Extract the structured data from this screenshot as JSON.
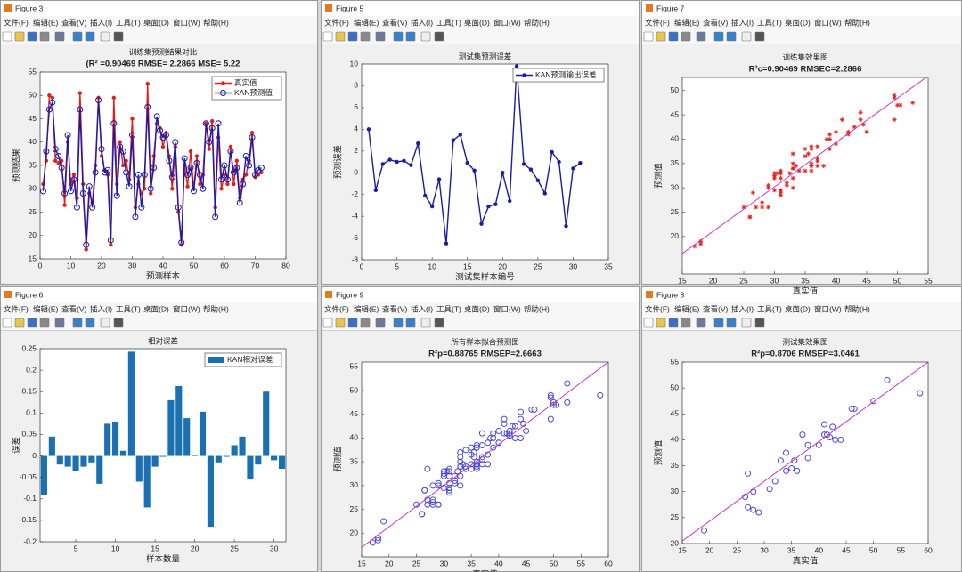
{
  "windows": [
    "Figure 3",
    "Figure 5",
    "Figure 7",
    "Figure 6",
    "Figure 9",
    "Figure 8"
  ],
  "menu": [
    "文件(F)",
    "编辑(E)",
    "查看(V)",
    "插入(I)",
    "工具(T)",
    "桌面(D)",
    "窗口(W)",
    "帮助(H)"
  ],
  "chart_data": [
    {
      "type": "line",
      "title": "训练集预测结果对比",
      "subtitle": "(R² =0.90469 RMSE= 2.2866 MSE= 5.22",
      "xlabel": "预测样本",
      "ylabel": "预测结果",
      "xlim": [
        0,
        80
      ],
      "ylim": [
        15,
        55
      ],
      "xticks": [
        0,
        10,
        20,
        30,
        40,
        50,
        60,
        70,
        80
      ],
      "yticks": [
        15,
        20,
        25,
        30,
        35,
        40,
        45,
        50,
        55
      ],
      "legend": "upper right",
      "x": [
        1,
        2,
        3,
        4,
        5,
        6,
        7,
        8,
        9,
        10,
        11,
        12,
        13,
        14,
        15,
        16,
        17,
        18,
        19,
        20,
        21,
        22,
        23,
        24,
        25,
        26,
        27,
        28,
        29,
        30,
        31,
        32,
        33,
        34,
        35,
        36,
        37,
        38,
        39,
        40,
        41,
        42,
        43,
        44,
        45,
        46,
        47,
        48,
        49,
        50,
        51,
        52,
        53,
        54,
        55,
        56,
        57,
        58,
        59,
        60,
        61,
        62,
        63,
        64,
        65,
        66,
        67,
        68,
        69,
        70,
        71,
        72
      ],
      "series": [
        {
          "name": "真实值",
          "color": "#e0201b",
          "marker": "dot",
          "values": [
            31,
            36,
            50,
            49.5,
            36,
            35.5,
            36,
            26.5,
            40,
            31,
            33,
            28,
            50.5,
            31,
            17,
            29,
            27,
            35,
            49.5,
            37,
            34,
            33,
            18,
            49.5,
            31,
            40,
            35,
            36,
            32,
            45,
            26,
            31,
            29,
            30,
            52.5,
            29,
            37,
            44,
            43,
            39,
            42,
            37,
            30,
            39,
            25,
            18,
            35,
            30.5,
            38,
            30,
            37,
            31,
            33,
            44,
            38.5,
            44.5,
            26,
            41,
            30,
            33,
            31,
            39,
            31,
            36,
            28,
            32,
            33,
            36,
            42,
            32.5,
            33,
            33.5
          ]
        },
        {
          "name": "KAN预测值",
          "color": "#1a1ab0",
          "marker": "circle",
          "values": [
            29.5,
            38,
            47,
            48.5,
            38.5,
            37,
            34.5,
            29,
            41.5,
            29.5,
            32,
            26,
            47,
            29,
            18,
            30.5,
            26,
            33.5,
            49,
            38.5,
            33.5,
            34,
            19,
            44,
            28.5,
            39,
            38,
            33.5,
            30.5,
            41.5,
            24,
            33,
            26,
            33,
            47.5,
            30,
            34.5,
            45.5,
            42.5,
            41,
            41.5,
            36,
            32.5,
            40,
            26,
            18.5,
            36.5,
            33,
            34.5,
            29.5,
            35.5,
            33,
            30,
            44,
            40,
            43,
            24,
            44,
            32,
            35,
            32,
            38,
            33.5,
            34.5,
            27,
            31,
            37,
            35,
            41,
            33,
            34,
            34.5
          ]
        }
      ]
    },
    {
      "type": "line",
      "title": "测试集预测误差",
      "xlabel": "测试集样本编号",
      "ylabel": "预测误差",
      "xlim": [
        0,
        35
      ],
      "ylim": [
        -8,
        10
      ],
      "xticks": [
        0,
        5,
        10,
        15,
        20,
        25,
        30,
        35
      ],
      "yticks": [
        -8,
        -6,
        -4,
        -2,
        0,
        2,
        4,
        6,
        8,
        10
      ],
      "legend": "upper right",
      "x": [
        1,
        2,
        3,
        4,
        5,
        6,
        7,
        8,
        9,
        10,
        11,
        12,
        13,
        14,
        15,
        16,
        17,
        18,
        19,
        20,
        21,
        22,
        23,
        24,
        25,
        26,
        27,
        28,
        29,
        30,
        31
      ],
      "series": [
        {
          "name": "KAN预测输出误差",
          "color": "#1a1aa6",
          "marker": "dot",
          "values": [
            4,
            -1.6,
            0.8,
            1.2,
            1.0,
            1.1,
            0.7,
            2.7,
            -2.1,
            -3.1,
            -0.6,
            -6.5,
            3.0,
            3.5,
            0.9,
            0.2,
            -4.7,
            -3.1,
            -2.9,
            0,
            -2.6,
            9.8,
            0.8,
            0.3,
            -0.7,
            -1.9,
            1.9,
            1.0,
            -4.9,
            0.4,
            0.9
          ]
        }
      ]
    },
    {
      "type": "scatter",
      "title": "训练集效果图",
      "subtitle": "R²c=0.90469  RMSEC=2.2866",
      "xlabel": "真实值",
      "ylabel": "预测值",
      "xlim": [
        15,
        55
      ],
      "ylim": [
        12.3,
        52.7
      ],
      "xticks": [
        15,
        20,
        25,
        30,
        35,
        40,
        45,
        50,
        55
      ],
      "yticks": [
        20,
        25,
        30,
        35,
        40,
        45,
        50
      ],
      "series": [
        {
          "color": "#e0201b",
          "marker": "star",
          "x": [
            31,
            36,
            50,
            49.5,
            36,
            35.5,
            36,
            26.5,
            40,
            31,
            33,
            28,
            50.5,
            31,
            17,
            29,
            27,
            35,
            49.5,
            37,
            34,
            33,
            18,
            49.5,
            31,
            40,
            35,
            36,
            32,
            45,
            26,
            31,
            29,
            30,
            52.5,
            29,
            37,
            44,
            43,
            39,
            42,
            37,
            30,
            39,
            25,
            18,
            35,
            30.5,
            38,
            30,
            37,
            31,
            33,
            44,
            38.5,
            44.5,
            26,
            41,
            30,
            33,
            31,
            39,
            31,
            36,
            28,
            32,
            33,
            36,
            42,
            32.5,
            33,
            33.5
          ],
          "values": [
            29.5,
            38,
            47,
            48.5,
            38.5,
            37,
            34.5,
            29,
            41.5,
            29.5,
            32,
            26,
            47,
            29,
            18,
            30.5,
            26,
            33.5,
            49,
            38.5,
            33.5,
            34,
            19,
            44,
            28.5,
            39,
            38,
            33.5,
            30.5,
            41.5,
            24,
            33,
            26,
            33,
            47.5,
            30,
            34.5,
            45.5,
            42.5,
            41,
            41.5,
            36,
            32.5,
            40,
            26,
            18.5,
            36.5,
            33,
            34.5,
            29.5,
            35.5,
            33,
            30,
            44,
            40,
            43,
            24,
            44,
            32,
            35,
            32,
            38,
            33.5,
            34.5,
            27,
            31,
            37,
            35,
            41,
            33,
            34,
            34.5
          ]
        },
        {
          "color": "#cc33cc",
          "x": [
            15,
            55
          ],
          "values": [
            16.5,
            53
          ]
        }
      ]
    },
    {
      "type": "bar",
      "title": "相对误差",
      "xlabel": "样本数量",
      "ylabel": "误差",
      "xlim": [
        0.5,
        31.5
      ],
      "ylim": [
        -0.2,
        0.25
      ],
      "xticks": [
        5,
        10,
        15,
        20,
        25,
        30
      ],
      "yticks": [
        -0.2,
        -0.15,
        -0.1,
        -0.05,
        0,
        0.05,
        0.1,
        0.15,
        0.2,
        0.25
      ],
      "legend": "upper right",
      "x": [
        1,
        2,
        3,
        4,
        5,
        6,
        7,
        8,
        9,
        10,
        11,
        12,
        13,
        14,
        15,
        16,
        17,
        18,
        19,
        20,
        21,
        22,
        23,
        24,
        25,
        26,
        27,
        28,
        29,
        30,
        31
      ],
      "series": [
        {
          "name": "KAN相对误差",
          "color": "#1a70b0",
          "values": [
            -0.09,
            0.045,
            -0.02,
            -0.025,
            -0.035,
            -0.025,
            -0.015,
            -0.065,
            0.075,
            0.08,
            0.012,
            0.243,
            -0.06,
            -0.12,
            -0.025,
            -0.002,
            0.13,
            0.163,
            0.088,
            0.002,
            0.103,
            -0.165,
            -0.015,
            -0.002,
            0.025,
            0.045,
            -0.055,
            -0.02,
            0.15,
            -0.01,
            -0.03
          ]
        }
      ]
    },
    {
      "type": "scatter",
      "title": "所有样本拟合预测图",
      "subtitle": "R²p=0.88765  RMSEP=2.6663",
      "xlabel": "真实值",
      "ylabel": "预测值",
      "xlim": [
        15,
        60
      ],
      "ylim": [
        15,
        56
      ],
      "xticks": [
        15,
        20,
        25,
        30,
        35,
        40,
        45,
        50,
        55,
        60
      ],
      "yticks": [
        20,
        25,
        30,
        35,
        40,
        45,
        50,
        55
      ],
      "series": [
        {
          "color": "#4a4ad0",
          "marker": "circle",
          "x": [
            31,
            36,
            50,
            49.5,
            36,
            35.5,
            36,
            26.5,
            40,
            31,
            33,
            28,
            50.5,
            31,
            17,
            29,
            27,
            35,
            49.5,
            37,
            34,
            33,
            18,
            49.5,
            31,
            40,
            35,
            36,
            32,
            45,
            26,
            31,
            29,
            30,
            52.5,
            29,
            37,
            44,
            43,
            39,
            42,
            37,
            30,
            39,
            25,
            18,
            35,
            30.5,
            38,
            30,
            37,
            31,
            33,
            44,
            38.5,
            44.5,
            26,
            41,
            30,
            33,
            31,
            39,
            31,
            36,
            28,
            32,
            33,
            36,
            42,
            32.5,
            33,
            33.5,
            19,
            26.5,
            27,
            27,
            28,
            29,
            31,
            33,
            34,
            34,
            35,
            35.5,
            36,
            37,
            38,
            38,
            40,
            41,
            41,
            41.5,
            42,
            42.5,
            43,
            44,
            46,
            46.5,
            50,
            52.5,
            58.5,
            28,
            32
          ],
          "values": [
            29.5,
            38,
            47,
            48.5,
            38.5,
            37,
            34.5,
            29,
            41.5,
            29.5,
            32,
            26,
            47,
            29,
            18,
            30.5,
            26,
            33.5,
            49,
            38.5,
            33.5,
            34,
            19,
            44,
            28.5,
            39,
            38,
            33.5,
            30.5,
            41.5,
            24,
            33,
            26,
            33,
            47.5,
            30,
            34.5,
            45.5,
            42.5,
            41,
            41.5,
            36,
            32.5,
            40,
            26,
            18.5,
            36.5,
            33,
            34.5,
            29.5,
            35.5,
            33,
            30,
            44,
            40,
            43,
            24,
            44,
            32,
            35,
            32,
            38,
            33.5,
            34.5,
            27,
            31,
            37,
            35,
            41,
            33,
            34,
            34.5,
            22.5,
            29,
            33.5,
            27,
            30,
            26,
            30.5,
            36,
            37.5,
            34,
            34.5,
            36,
            34,
            41,
            39,
            36.5,
            39,
            43,
            41,
            41,
            40.5,
            42.5,
            40,
            40,
            46,
            46,
            47.5,
            51.5,
            49,
            26.5,
            32
          ]
        },
        {
          "color": "#cc33cc",
          "x": [
            15,
            60
          ],
          "values": [
            17,
            56
          ]
        }
      ]
    },
    {
      "type": "scatter",
      "title": "测试集效果图",
      "subtitle": "R²p=0.8706  RMSEP=3.0461",
      "xlabel": "真实值",
      "ylabel": "预测值",
      "xlim": [
        15,
        60
      ],
      "ylim": [
        20,
        55
      ],
      "xticks": [
        15,
        20,
        25,
        30,
        35,
        40,
        45,
        50,
        55,
        60
      ],
      "yticks": [
        20,
        25,
        30,
        35,
        40,
        45,
        50,
        55
      ],
      "series": [
        {
          "color": "#4a4ad0",
          "marker": "circle",
          "x": [
            19,
            26.5,
            27,
            27,
            28,
            29,
            31,
            33,
            34,
            34,
            35,
            35.5,
            36,
            37,
            38,
            38,
            40,
            41,
            41,
            41.5,
            42,
            42.5,
            43,
            44,
            46,
            46.5,
            50,
            52.5,
            58.5,
            28,
            32
          ],
          "values": [
            22.5,
            29,
            33.5,
            27,
            30,
            26,
            30.5,
            36,
            37.5,
            34,
            34.5,
            36,
            34,
            41,
            39,
            36.5,
            39,
            43,
            41,
            41,
            40.5,
            42.5,
            40,
            40,
            46,
            46,
            47.5,
            51.5,
            49,
            26.5,
            32
          ]
        },
        {
          "color": "#cc33cc",
          "x": [
            15,
            60
          ],
          "values": [
            20.5,
            55
          ]
        }
      ]
    }
  ]
}
